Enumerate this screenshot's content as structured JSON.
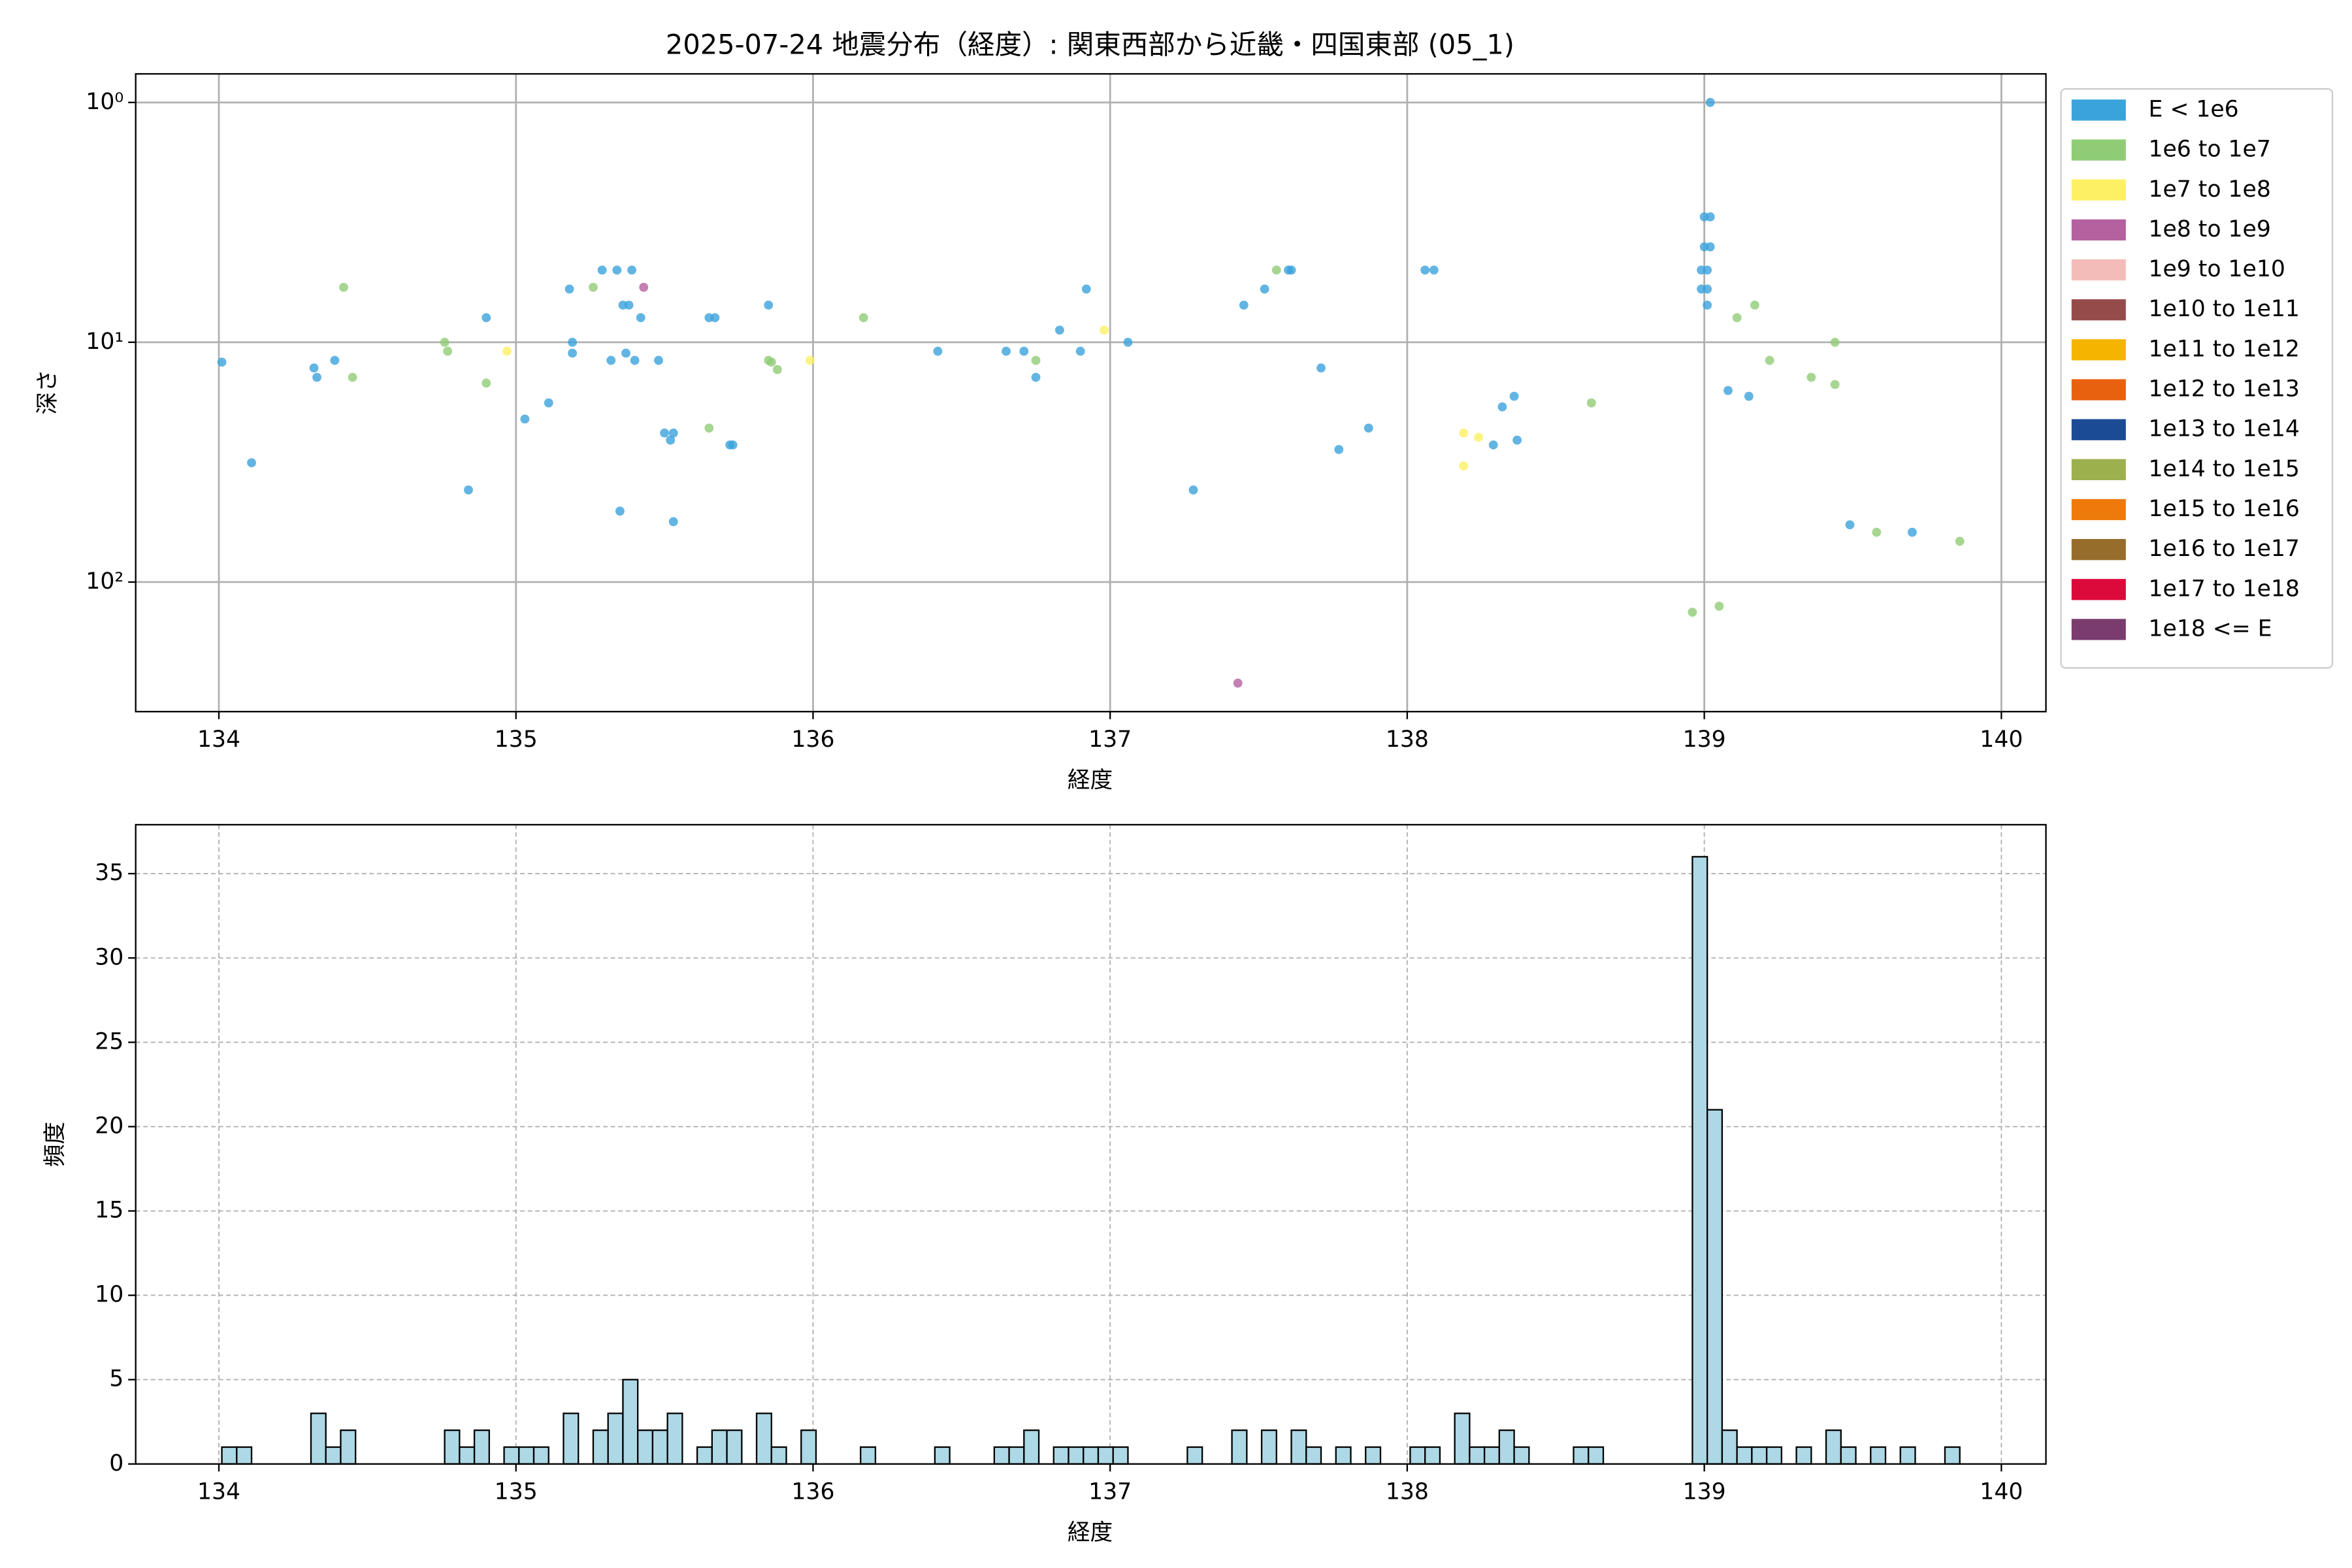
{
  "chart_data": [
    {
      "type": "scatter",
      "title": "2025-07-24 地震分布（経度）: 関東西部から近畿・四国東部 (05_1)",
      "x_label": "経度",
      "y_label": "深さ",
      "xlim": [
        133.72,
        140.15
      ],
      "xticks": [
        134,
        135,
        136,
        137,
        138,
        139,
        140
      ],
      "ylim": [
        0.76,
        347
      ],
      "log_y": true,
      "y_inverted": true,
      "yticks": [
        {
          "value": 1,
          "label": "10⁰"
        },
        {
          "value": 10,
          "label": "10¹"
        },
        {
          "value": 100,
          "label": "10²"
        }
      ],
      "grid": true,
      "grid_linestyle": "solid",
      "legend": "outside-right",
      "series": [
        {
          "name": "E < 1e6",
          "color": "#3ba3dc",
          "x": [
            134.01,
            134.11,
            134.32,
            134.33,
            134.39,
            134.84,
            134.9,
            135.03,
            135.11,
            135.18,
            135.19,
            135.19,
            135.29,
            135.32,
            135.35,
            135.34,
            135.36,
            135.38,
            135.37,
            135.39,
            135.4,
            135.42,
            135.48,
            135.5,
            135.52,
            135.53,
            135.53,
            135.65,
            135.67,
            135.72,
            135.73,
            135.85,
            136.42,
            136.65,
            136.71,
            136.75,
            136.83,
            136.9,
            136.92,
            137.06,
            137.28,
            137.45,
            137.52,
            137.6,
            137.61,
            137.71,
            137.77,
            137.87,
            138.06,
            138.09,
            138.29,
            138.32,
            138.37,
            138.36,
            139.02,
            139.0,
            139.02,
            139.0,
            139.02,
            138.99,
            139.01,
            138.99,
            139.01,
            139.01,
            139.08,
            139.15,
            139.49,
            139.7
          ],
          "y": [
            12.1,
            31.8,
            12.8,
            14.0,
            11.9,
            41.3,
            7.9,
            20.9,
            17.9,
            6.0,
            10.0,
            11.1,
            5.0,
            11.9,
            50.6,
            5.0,
            7.0,
            7.0,
            11.1,
            5.0,
            11.9,
            7.9,
            11.9,
            23.9,
            25.6,
            23.9,
            56.0,
            7.9,
            7.9,
            26.8,
            26.8,
            7.0,
            10.9,
            10.9,
            10.9,
            14.0,
            8.9,
            10.9,
            6.0,
            10.0,
            41.3,
            7.0,
            6.0,
            5.0,
            5.0,
            12.8,
            28.0,
            22.8,
            5.0,
            5.0,
            26.8,
            18.6,
            25.6,
            16.8,
            1.0,
            3.0,
            3.0,
            4.0,
            4.0,
            5.0,
            5.0,
            6.0,
            6.0,
            7.0,
            15.9,
            16.8,
            57.7,
            62.0
          ]
        },
        {
          "name": "1e6 to 1e7",
          "color": "#90cc76",
          "x": [
            134.42,
            134.45,
            134.76,
            134.77,
            134.9,
            135.26,
            135.65,
            135.85,
            135.86,
            135.88,
            136.17,
            136.75,
            137.56,
            138.62,
            138.96,
            139.05,
            139.11,
            139.17,
            139.22,
            139.36,
            139.44,
            139.44,
            139.58,
            139.86
          ],
          "y": [
            5.9,
            14.0,
            10.0,
            10.9,
            14.8,
            5.9,
            22.8,
            11.9,
            12.1,
            13.0,
            7.9,
            11.9,
            5.0,
            17.9,
            133.6,
            126.1,
            7.9,
            7.0,
            11.9,
            14.0,
            10.0,
            15.0,
            62.0,
            67.6
          ]
        },
        {
          "name": "1e7 to 1e8",
          "color": "#fdf064",
          "x": [
            134.97,
            135.99,
            136.98,
            138.19,
            138.24,
            138.19
          ],
          "y": [
            10.9,
            11.9,
            8.9,
            23.9,
            24.9,
            32.8
          ]
        },
        {
          "name": "1e8 to 1e9",
          "color": "#b5609f",
          "x": [
            135.43,
            137.43
          ],
          "y": [
            5.9,
            263.9
          ]
        },
        {
          "name": "1e9 to 1e10",
          "color": "#f4bcb9",
          "x": [],
          "y": []
        },
        {
          "name": "1e10 to 1e11",
          "color": "#964b4b",
          "x": [],
          "y": []
        },
        {
          "name": "1e11 to 1e12",
          "color": "#f5b400",
          "x": [],
          "y": []
        },
        {
          "name": "1e12 to 1e13",
          "color": "#e8610f",
          "x": [],
          "y": []
        },
        {
          "name": "1e13 to 1e14",
          "color": "#1c4b96",
          "x": [],
          "y": []
        },
        {
          "name": "1e14 to 1e15",
          "color": "#9cb04e",
          "x": [],
          "y": []
        },
        {
          "name": "1e15 to 1e16",
          "color": "#ee7a0c",
          "x": [],
          "y": []
        },
        {
          "name": "1e16 to 1e17",
          "color": "#976d2c",
          "x": [],
          "y": []
        },
        {
          "name": "1e17 to 1e18",
          "color": "#dc0a3a",
          "x": [],
          "y": []
        },
        {
          "name": "1e18 <= E",
          "color": "#7a3c6e",
          "x": [],
          "y": []
        }
      ]
    },
    {
      "type": "histogram",
      "x_label": "経度",
      "y_label": "頻度",
      "xlim": [
        133.72,
        140.15
      ],
      "xticks": [
        134,
        135,
        136,
        137,
        138,
        139,
        140
      ],
      "ylim": [
        0,
        37.9
      ],
      "yticks": [
        0,
        5,
        10,
        15,
        20,
        25,
        30,
        35
      ],
      "grid": true,
      "grid_linestyle": "dashed",
      "color": "#add8e6",
      "edgecolor": "#000000",
      "bins": [
        134.01,
        134.06,
        134.11,
        134.16,
        134.21,
        134.26,
        134.31,
        134.36,
        134.41,
        134.46,
        134.51,
        134.56,
        134.61,
        134.66,
        134.71,
        134.76,
        134.81,
        134.86,
        134.91,
        134.96,
        135.01,
        135.06,
        135.11,
        135.16,
        135.21,
        135.26,
        135.31,
        135.36,
        135.41,
        135.46,
        135.51,
        135.56,
        135.61,
        135.66,
        135.71,
        135.76,
        135.81,
        135.86,
        135.91,
        135.96,
        136.01,
        136.06,
        136.11,
        136.16,
        136.21,
        136.26,
        136.31,
        136.36,
        136.41,
        136.46,
        136.51,
        136.56,
        136.61,
        136.66,
        136.71,
        136.76,
        136.81,
        136.86,
        136.91,
        136.96,
        137.01,
        137.06,
        137.11,
        137.16,
        137.21,
        137.26,
        137.31,
        137.36,
        137.41,
        137.46,
        137.51,
        137.56,
        137.61,
        137.66,
        137.71,
        137.76,
        137.81,
        137.86,
        137.91,
        137.96,
        138.01,
        138.06,
        138.11,
        138.16,
        138.21,
        138.26,
        138.31,
        138.36,
        138.41,
        138.46,
        138.51,
        138.56,
        138.61,
        138.66,
        138.71,
        138.76,
        138.81,
        138.86,
        138.91,
        138.96,
        139.01,
        139.06,
        139.11,
        139.16,
        139.21,
        139.26,
        139.31,
        139.36,
        139.41,
        139.46,
        139.51,
        139.56,
        139.61,
        139.66,
        139.71,
        139.76,
        139.81,
        139.86
      ],
      "values": [
        1,
        1,
        0,
        0,
        0,
        0,
        3,
        1,
        2,
        0,
        0,
        0,
        0,
        0,
        0,
        2,
        1,
        2,
        0,
        1,
        1,
        1,
        0,
        3,
        0,
        2,
        3,
        5,
        2,
        2,
        3,
        0,
        1,
        2,
        2,
        0,
        3,
        1,
        0,
        2,
        0,
        0,
        0,
        1,
        0,
        0,
        0,
        0,
        1,
        0,
        0,
        0,
        1,
        1,
        2,
        0,
        1,
        1,
        1,
        1,
        1,
        0,
        0,
        0,
        0,
        1,
        0,
        0,
        2,
        0,
        2,
        0,
        2,
        1,
        0,
        1,
        0,
        1,
        0,
        0,
        1,
        1,
        0,
        3,
        1,
        1,
        2,
        1,
        0,
        0,
        0,
        1,
        1,
        0,
        0,
        0,
        0,
        0,
        0,
        36,
        21,
        2,
        1,
        1,
        1,
        0,
        1,
        0,
        2,
        1,
        0,
        1,
        0,
        1,
        0,
        0,
        1
      ]
    }
  ]
}
